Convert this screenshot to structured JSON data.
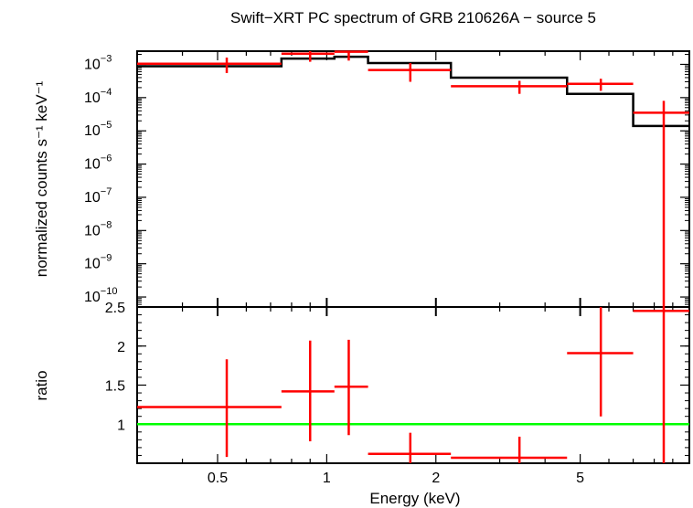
{
  "chart_data": [
    {
      "type": "line",
      "panel": "spectrum",
      "title": "Swift−XRT PC spectrum of GRB 210626A − source 5",
      "ylabel": "normalized counts s⁻¹ keV⁻¹",
      "xscale": "log",
      "yscale": "log",
      "xlim": [
        0.3,
        10
      ],
      "ylim": [
        5e-11,
        0.0025
      ],
      "y_ticks": [
        {
          "base": "10",
          "exp": "−3",
          "value": 0.001
        },
        {
          "base": "10",
          "exp": "−4",
          "value": 0.0001
        },
        {
          "base": "10",
          "exp": "−5",
          "value": 1e-05
        },
        {
          "base": "10",
          "exp": "−6",
          "value": 1e-06
        },
        {
          "base": "10",
          "exp": "−7",
          "value": 1e-07
        },
        {
          "base": "10",
          "exp": "−8",
          "value": 1e-08
        },
        {
          "base": "10",
          "exp": "−9",
          "value": 1e-09
        },
        {
          "base": "10",
          "exp": "−10",
          "value": 1e-10
        }
      ],
      "series": [
        {
          "kind": "data",
          "color": "#ff0000",
          "points": [
            {
              "x": 0.53,
              "xlo": 0.3,
              "xhi": 0.75,
              "y": 0.00105,
              "ylo": 0.00055,
              "yhi": 0.0016
            },
            {
              "x": 0.9,
              "xlo": 0.75,
              "xhi": 1.05,
              "y": 0.0021,
              "ylo": 0.0012,
              "yhi": 0.0032
            },
            {
              "x": 1.15,
              "xlo": 1.05,
              "xhi": 1.3,
              "y": 0.0024,
              "ylo": 0.0013,
              "yhi": 0.0034
            },
            {
              "x": 1.7,
              "xlo": 1.3,
              "xhi": 2.2,
              "y": 0.00068,
              "ylo": 0.0003,
              "yhi": 0.0011
            },
            {
              "x": 3.4,
              "xlo": 2.2,
              "xhi": 4.6,
              "y": 0.00022,
              "ylo": 0.00013,
              "yhi": 0.00032
            },
            {
              "x": 5.7,
              "xlo": 4.6,
              "xhi": 7.0,
              "y": 0.00026,
              "ylo": 0.00016,
              "yhi": 0.00037
            },
            {
              "x": 8.5,
              "xlo": 7.0,
              "xhi": 10.0,
              "y": 3.5e-05,
              "ylo": 5e-11,
              "yhi": 8e-05
            }
          ]
        },
        {
          "kind": "model",
          "color": "#000000",
          "steps": [
            {
              "xlo": 0.3,
              "xhi": 0.75,
              "y": 0.00088
            },
            {
              "xlo": 0.75,
              "xhi": 1.05,
              "y": 0.0015
            },
            {
              "xlo": 1.05,
              "xhi": 1.3,
              "y": 0.0017
            },
            {
              "xlo": 1.3,
              "xhi": 2.2,
              "y": 0.0011
            },
            {
              "xlo": 2.2,
              "xhi": 4.6,
              "y": 0.0004
            },
            {
              "xlo": 4.6,
              "xhi": 7.0,
              "y": 0.00013
            },
            {
              "xlo": 7.0,
              "xhi": 10.0,
              "y": 1.4e-05
            }
          ]
        }
      ]
    },
    {
      "type": "scatter",
      "panel": "ratio",
      "xlabel": "Energy (keV)",
      "ylabel": "ratio",
      "xscale": "log",
      "xlim": [
        0.3,
        10
      ],
      "ylim": [
        0.5,
        2.5
      ],
      "x_ticks": [
        {
          "label": "0.5",
          "value": 0.5
        },
        {
          "label": "1",
          "value": 1
        },
        {
          "label": "2",
          "value": 2
        },
        {
          "label": "5",
          "value": 5
        }
      ],
      "y_ticks": [
        {
          "label": "1",
          "value": 1
        },
        {
          "label": "1.5",
          "value": 1.5
        },
        {
          "label": "2",
          "value": 2
        },
        {
          "label": "2.5",
          "value": 2.5
        }
      ],
      "reference_line": {
        "y": 1,
        "color": "#00ff00"
      },
      "series": [
        {
          "kind": "ratio",
          "color": "#ff0000",
          "points": [
            {
              "x": 0.53,
              "xlo": 0.3,
              "xhi": 0.75,
              "y": 1.22,
              "ylo": 0.58,
              "yhi": 1.83
            },
            {
              "x": 0.9,
              "xlo": 0.75,
              "xhi": 1.05,
              "y": 1.42,
              "ylo": 0.78,
              "yhi": 2.07
            },
            {
              "x": 1.15,
              "xlo": 1.05,
              "xhi": 1.3,
              "y": 1.48,
              "ylo": 0.86,
              "yhi": 2.08
            },
            {
              "x": 1.7,
              "xlo": 1.3,
              "xhi": 2.2,
              "y": 0.62,
              "ylo": 0.4,
              "yhi": 0.89
            },
            {
              "x": 3.4,
              "xlo": 2.2,
              "xhi": 4.6,
              "y": 0.57,
              "ylo": 0.4,
              "yhi": 0.84
            },
            {
              "x": 5.7,
              "xlo": 4.6,
              "xhi": 7.0,
              "y": 1.91,
              "ylo": 1.1,
              "yhi": 2.5
            },
            {
              "x": 8.5,
              "xlo": 7.0,
              "xhi": 10.0,
              "y": 2.45,
              "ylo": 0.4,
              "yhi": 2.6
            }
          ]
        }
      ]
    }
  ]
}
